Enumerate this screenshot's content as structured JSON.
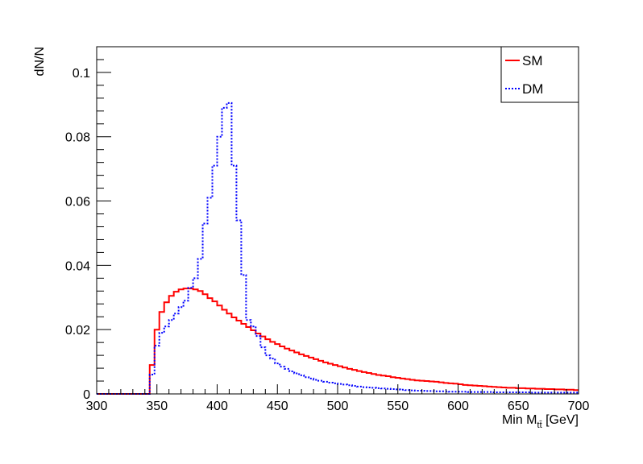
{
  "chart_data": {
    "type": "line",
    "subtype": "step-histogram",
    "title": "",
    "xlabel": "Min M",
    "xlabel_subscript": "tt̄",
    "xlabel_unit": " [GeV]",
    "ylabel": "dN/N",
    "xlim": [
      300,
      700
    ],
    "ylim": [
      0,
      0.108
    ],
    "x_ticks": [
      300,
      350,
      400,
      450,
      500,
      550,
      600,
      650,
      700
    ],
    "x_tick_labels": [
      "300",
      "350",
      "400",
      "450",
      "500",
      "550",
      "600",
      "650",
      "700"
    ],
    "y_ticks": [
      0,
      0.02,
      0.04,
      0.06,
      0.08,
      0.1
    ],
    "y_tick_labels": [
      "0",
      "0.02",
      "0.04",
      "0.06",
      "0.08",
      "0.1"
    ],
    "bin_edges_start": 300,
    "bin_width": 4,
    "grid": false,
    "legend_position": "top-right",
    "series": [
      {
        "name": "SM",
        "color": "#ff0000",
        "line_style": "solid",
        "values": [
          0,
          0,
          0,
          0,
          0,
          0,
          0,
          0,
          0,
          0,
          0,
          0.009,
          0.02,
          0.0255,
          0.0285,
          0.0305,
          0.0318,
          0.0325,
          0.0328,
          0.0328,
          0.0325,
          0.032,
          0.031,
          0.0298,
          0.0288,
          0.0275,
          0.0262,
          0.025,
          0.0238,
          0.0228,
          0.0218,
          0.0208,
          0.0198,
          0.0188,
          0.0179,
          0.017,
          0.0162,
          0.0155,
          0.0148,
          0.0141,
          0.0135,
          0.0129,
          0.0123,
          0.0118,
          0.0113,
          0.0108,
          0.0103,
          0.0098,
          0.0094,
          0.009,
          0.0086,
          0.0082,
          0.0078,
          0.0075,
          0.0071,
          0.0068,
          0.0065,
          0.0062,
          0.0059,
          0.0057,
          0.0055,
          0.0052,
          0.005,
          0.0048,
          0.0046,
          0.0044,
          0.0042,
          0.0041,
          0.004,
          0.0039,
          0.0038,
          0.0036,
          0.0034,
          0.0033,
          0.0032,
          0.003,
          0.0028,
          0.0027,
          0.0026,
          0.0025,
          0.0024,
          0.0023,
          0.0022,
          0.0021,
          0.002,
          0.0019,
          0.0019,
          0.0018,
          0.0018,
          0.0017,
          0.0017,
          0.0016,
          0.0016,
          0.0015,
          0.0015,
          0.0014,
          0.0014,
          0.0013,
          0.0013,
          0.0012
        ]
      },
      {
        "name": "DM",
        "color": "#0000ff",
        "line_style": "dotted",
        "values": [
          0,
          0,
          0,
          0,
          0,
          0,
          0,
          0,
          0,
          0,
          0,
          0.006,
          0.015,
          0.019,
          0.021,
          0.023,
          0.025,
          0.027,
          0.029,
          0.033,
          0.036,
          0.042,
          0.053,
          0.061,
          0.071,
          0.08,
          0.089,
          0.0905,
          0.071,
          0.054,
          0.037,
          0.023,
          0.021,
          0.018,
          0.0145,
          0.012,
          0.011,
          0.0095,
          0.0085,
          0.0078,
          0.007,
          0.0064,
          0.0058,
          0.0052,
          0.0048,
          0.0044,
          0.0041,
          0.0038,
          0.0035,
          0.0033,
          0.0031,
          0.0029,
          0.0027,
          0.0025,
          0.0023,
          0.0021,
          0.002,
          0.0019,
          0.0018,
          0.0017,
          0.0016,
          0.0015,
          0.0014,
          0.0013,
          0.0012,
          0.0011,
          0.001,
          0.001,
          0.0009,
          0.0009,
          0.0008,
          0.0008,
          0.0008,
          0.0007,
          0.0007,
          0.0007,
          0.0007,
          0.0006,
          0.0006,
          0.0006,
          0.0006,
          0.0006,
          0.0005,
          0.0005,
          0.0005,
          0.0005,
          0.0005,
          0.0005,
          0.0005,
          0.0005,
          0.0004,
          0.0004,
          0.0004,
          0.0004,
          0.0004,
          0.0004,
          0.0004,
          0.0004,
          0.0004,
          0.0004
        ]
      }
    ]
  }
}
